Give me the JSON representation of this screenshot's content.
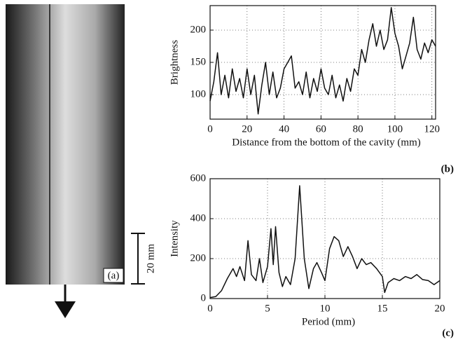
{
  "photo": {
    "label": "(a)",
    "scale_bar": "20 mm"
  },
  "chart_data": [
    {
      "type": "line",
      "panel_label": "(b)",
      "x_label": "Distance from the bottom of the cavity (mm)",
      "y_label": "Brightness",
      "x": [
        0,
        2,
        4,
        6,
        8,
        10,
        12,
        14,
        16,
        18,
        20,
        22,
        24,
        26,
        28,
        30,
        32,
        34,
        36,
        38,
        40,
        42,
        44,
        46,
        48,
        50,
        52,
        54,
        56,
        58,
        60,
        62,
        64,
        66,
        68,
        70,
        72,
        74,
        76,
        78,
        80,
        82,
        84,
        86,
        88,
        90,
        92,
        94,
        96,
        98,
        100,
        102,
        104,
        106,
        108,
        110,
        112,
        114,
        116,
        118,
        120,
        122
      ],
      "values": [
        90,
        120,
        165,
        100,
        130,
        95,
        140,
        105,
        125,
        95,
        140,
        100,
        130,
        70,
        115,
        150,
        100,
        135,
        95,
        110,
        140,
        150,
        160,
        110,
        120,
        100,
        135,
        95,
        125,
        105,
        140,
        110,
        100,
        130,
        95,
        115,
        90,
        125,
        105,
        140,
        130,
        170,
        150,
        185,
        210,
        175,
        200,
        170,
        185,
        235,
        195,
        175,
        140,
        160,
        180,
        220,
        170,
        155,
        180,
        165,
        185,
        175
      ],
      "color": "#111111",
      "xlim": [
        0,
        122
      ],
      "ylim": [
        62,
        238
      ],
      "xticks": [
        0,
        20,
        40,
        60,
        80,
        100,
        120
      ],
      "yticks": [
        100,
        150,
        200
      ],
      "grid": true
    },
    {
      "type": "line",
      "panel_label": "(c)",
      "x_label": "Period (mm)",
      "y_label": "Intensity",
      "x": [
        0,
        0.5,
        1,
        1.5,
        2,
        2.3,
        2.6,
        3,
        3.3,
        3.6,
        4,
        4.3,
        4.6,
        5,
        5.3,
        5.5,
        5.7,
        6,
        6.3,
        6.6,
        7,
        7.4,
        7.8,
        8.2,
        8.6,
        9,
        9.3,
        9.7,
        10,
        10.4,
        10.8,
        11.2,
        11.6,
        12,
        12.4,
        12.8,
        13.2,
        13.6,
        14,
        14.5,
        15,
        15.2,
        15.5,
        16,
        16.5,
        17,
        17.5,
        18,
        18.5,
        19,
        19.5,
        20
      ],
      "values": [
        5,
        10,
        40,
        100,
        150,
        110,
        160,
        90,
        290,
        120,
        90,
        200,
        80,
        160,
        350,
        170,
        360,
        130,
        60,
        110,
        70,
        200,
        565,
        200,
        50,
        150,
        180,
        130,
        90,
        250,
        310,
        290,
        210,
        260,
        210,
        150,
        200,
        170,
        180,
        150,
        110,
        30,
        80,
        100,
        90,
        110,
        100,
        120,
        95,
        90,
        70,
        90
      ],
      "color": "#111111",
      "xlim": [
        0,
        20
      ],
      "ylim": [
        0,
        600
      ],
      "xticks": [
        0,
        5,
        10,
        15,
        20
      ],
      "yticks": [
        0,
        200,
        400,
        600
      ],
      "grid": true
    }
  ]
}
